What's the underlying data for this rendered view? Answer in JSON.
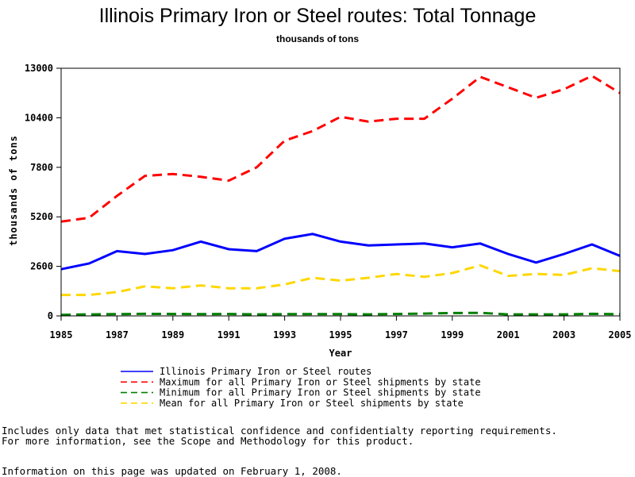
{
  "chart_data": {
    "type": "line",
    "title": "Illinois Primary Iron or Steel routes: Total Tonnage",
    "subtitle": "thousands of tons",
    "xlabel": "Year",
    "ylabel": "thousands of tons",
    "xlim": [
      1985,
      2005
    ],
    "ylim": [
      0,
      13000
    ],
    "x_ticks": [
      1985,
      1987,
      1989,
      1991,
      1993,
      1995,
      1997,
      1999,
      2001,
      2003,
      2005
    ],
    "y_ticks": [
      0,
      2600,
      5200,
      7800,
      10400,
      13000
    ],
    "x": [
      1985,
      1986,
      1987,
      1988,
      1989,
      1990,
      1991,
      1992,
      1993,
      1994,
      1995,
      1996,
      1997,
      1998,
      1999,
      2000,
      2001,
      2002,
      2003,
      2004,
      2005
    ],
    "series": [
      {
        "name": "Illinois Primary Iron or Steel routes",
        "color": "#0000ff",
        "dash": "solid",
        "values": [
          2450,
          2750,
          3400,
          3250,
          3450,
          3900,
          3500,
          3400,
          4050,
          4300,
          3900,
          3700,
          3750,
          3800,
          3600,
          3800,
          3250,
          2800,
          3250,
          3750,
          3150
        ]
      },
      {
        "name": "Maximum for all Primary Iron or Steel shipments by state",
        "color": "#ff0000",
        "dash": "dashed",
        "values": [
          4950,
          5150,
          6300,
          7350,
          7450,
          7300,
          7100,
          7800,
          9200,
          9700,
          10450,
          10200,
          10350,
          10350,
          11400,
          12550,
          12000,
          11450,
          11900,
          12600,
          11700
        ]
      },
      {
        "name": "Minimum for all Primary Iron or Steel shipments by state",
        "color": "#008000",
        "dash": "dashed",
        "values": [
          50,
          80,
          90,
          110,
          100,
          90,
          100,
          80,
          90,
          90,
          90,
          80,
          100,
          120,
          150,
          160,
          80,
          80,
          80,
          110,
          90
        ]
      },
      {
        "name": "Mean for all Primary Iron or Steel shipments by state",
        "color": "#ffd700",
        "dash": "dashed",
        "values": [
          1100,
          1100,
          1250,
          1550,
          1450,
          1600,
          1450,
          1450,
          1650,
          2000,
          1850,
          2000,
          2200,
          2050,
          2250,
          2650,
          2100,
          2200,
          2150,
          2500,
          2350
        ]
      }
    ]
  },
  "notes": {
    "line1": "Includes only data that met statistical confidence and confidentialty reporting requirements.",
    "line2": "For more information, see the Scope and Methodology for this product.",
    "updated": "Information on this page was updated on February 1, 2008."
  }
}
